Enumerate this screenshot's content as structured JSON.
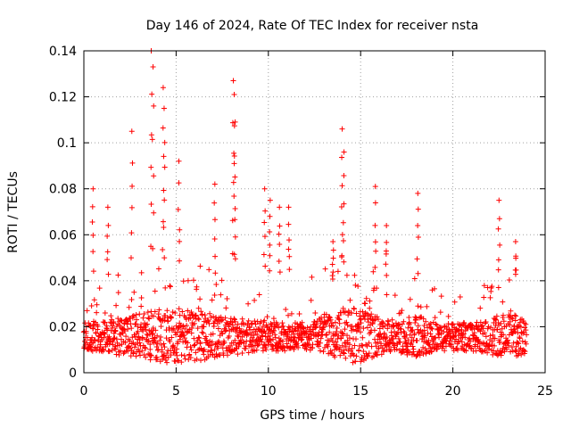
{
  "chart_data": {
    "type": "scatter",
    "title": "Day 146 of 2024, Rate Of TEC Index for receiver nsta",
    "xlabel": "GPS time / hours",
    "ylabel": "ROTI / TECUs",
    "xlim": [
      0,
      25
    ],
    "ylim": [
      0,
      0.14
    ],
    "x_ticks": [
      0,
      5,
      10,
      15,
      20,
      25
    ],
    "y_ticks": [
      0,
      0.02,
      0.04,
      0.06,
      0.08,
      0.1,
      0.12,
      0.14
    ],
    "x_tick_labels": [
      "0",
      "5",
      "10",
      "15",
      "20",
      "25"
    ],
    "y_tick_labels": [
      "0",
      "0.02",
      "0.04",
      "0.06",
      "0.08",
      "0.1",
      "0.12",
      "0.14"
    ],
    "grid": true,
    "marker": "+",
    "color": "#ff0000",
    "data_extent_hours": [
      0,
      24
    ],
    "baseline_roti": 0.015,
    "typical_band": [
      0.005,
      0.035
    ],
    "notable_spikes": [
      {
        "x": 0.5,
        "y": 0.08
      },
      {
        "x": 1.3,
        "y": 0.072
      },
      {
        "x": 2.6,
        "y": 0.105
      },
      {
        "x": 3.65,
        "y": 0.14
      },
      {
        "x": 3.75,
        "y": 0.133
      },
      {
        "x": 4.3,
        "y": 0.124
      },
      {
        "x": 4.35,
        "y": 0.115
      },
      {
        "x": 5.15,
        "y": 0.092
      },
      {
        "x": 7.1,
        "y": 0.082
      },
      {
        "x": 8.1,
        "y": 0.127
      },
      {
        "x": 8.15,
        "y": 0.121
      },
      {
        "x": 8.2,
        "y": 0.109
      },
      {
        "x": 9.8,
        "y": 0.08
      },
      {
        "x": 10.1,
        "y": 0.075
      },
      {
        "x": 10.6,
        "y": 0.072
      },
      {
        "x": 11.1,
        "y": 0.072
      },
      {
        "x": 13.5,
        "y": 0.057
      },
      {
        "x": 14.0,
        "y": 0.106
      },
      {
        "x": 14.1,
        "y": 0.096
      },
      {
        "x": 15.8,
        "y": 0.081
      },
      {
        "x": 16.4,
        "y": 0.064
      },
      {
        "x": 18.1,
        "y": 0.078
      },
      {
        "x": 22.5,
        "y": 0.075
      },
      {
        "x": 23.4,
        "y": 0.057
      }
    ]
  }
}
